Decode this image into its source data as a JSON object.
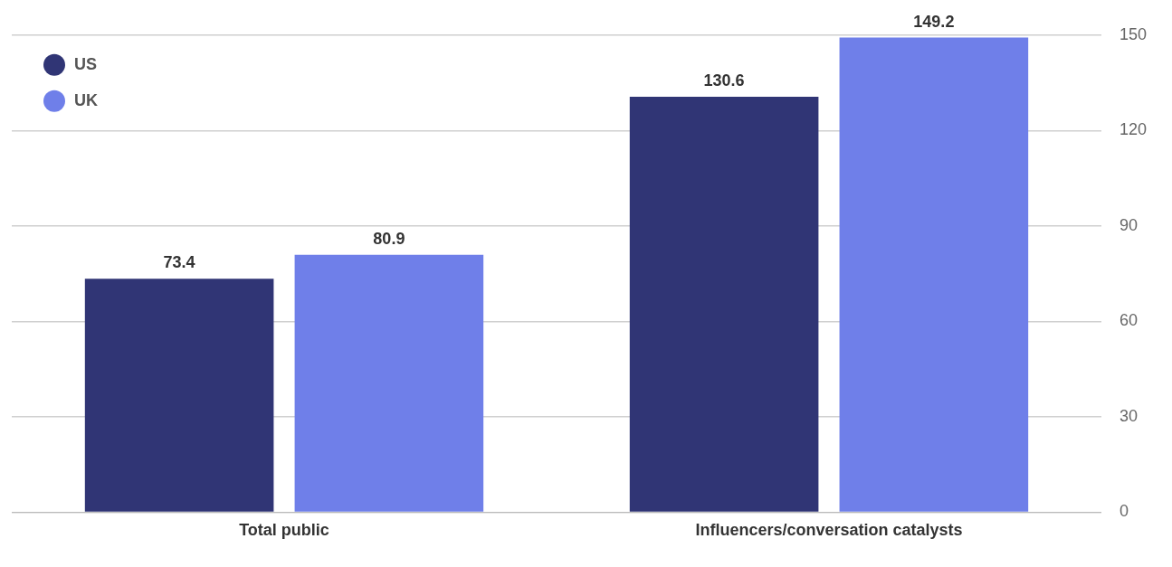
{
  "chart_data": {
    "type": "bar",
    "categories": [
      "Total public",
      "Influencers/conversation catalysts"
    ],
    "series": [
      {
        "name": "US",
        "color": "#303575",
        "values": [
          73.4,
          130.6
        ]
      },
      {
        "name": "UK",
        "color": "#6f7fe9",
        "values": [
          80.9,
          149.2
        ]
      }
    ],
    "ylim": [
      0,
      150
    ],
    "yticks": [
      0,
      30,
      60,
      90,
      120,
      150
    ],
    "grid": "y",
    "legend": "top left",
    "data_labels": true
  }
}
